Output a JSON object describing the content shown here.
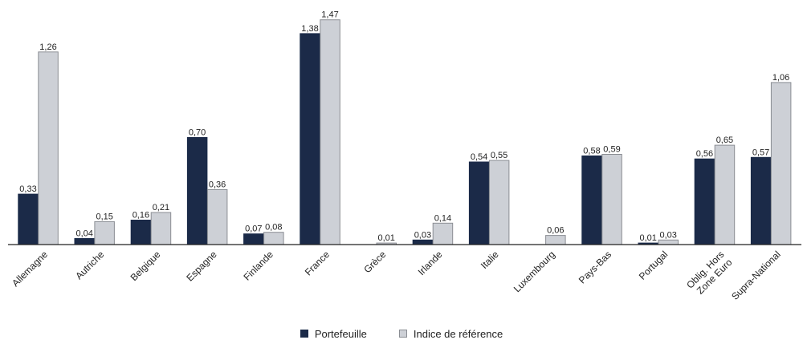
{
  "chart_data": {
    "type": "bar",
    "categories": [
      "Allemagne",
      "Autriche",
      "Belgique",
      "Espagne",
      "Finlande",
      "France",
      "Grèce",
      "Irlande",
      "Italie",
      "Luxembourg",
      "Pays-Bas",
      "Portugal",
      "Oblig. Hors\nZone Euro",
      "Supra-National"
    ],
    "series": [
      {
        "name": "Portefeuille",
        "color": "#1b2a48",
        "values": [
          0.33,
          0.04,
          0.16,
          0.7,
          0.07,
          1.38,
          null,
          0.03,
          0.54,
          null,
          0.58,
          0.01,
          0.56,
          0.57
        ],
        "labels": [
          "0,33",
          "0,04",
          "0,16",
          "0,70",
          "0,07",
          "1,38",
          "",
          "0,03",
          "0,54",
          "",
          "0,58",
          "0,01",
          "0,56",
          "0,57"
        ]
      },
      {
        "name": "Indice de référence",
        "color": "#cdd0d6",
        "values": [
          1.26,
          0.15,
          0.21,
          0.36,
          0.08,
          1.47,
          0.01,
          0.14,
          0.55,
          0.06,
          0.59,
          0.03,
          0.65,
          1.06
        ],
        "labels": [
          "1,26",
          "0,15",
          "0,21",
          "0,36",
          "0,08",
          "1,47",
          "0,01",
          "0,14",
          "0,55",
          "0,06",
          "0,59",
          "0,03",
          "0,65",
          "1,06"
        ]
      }
    ],
    "ylim": [
      0,
      1.5
    ],
    "grid": false,
    "legend_position": "bottom"
  }
}
